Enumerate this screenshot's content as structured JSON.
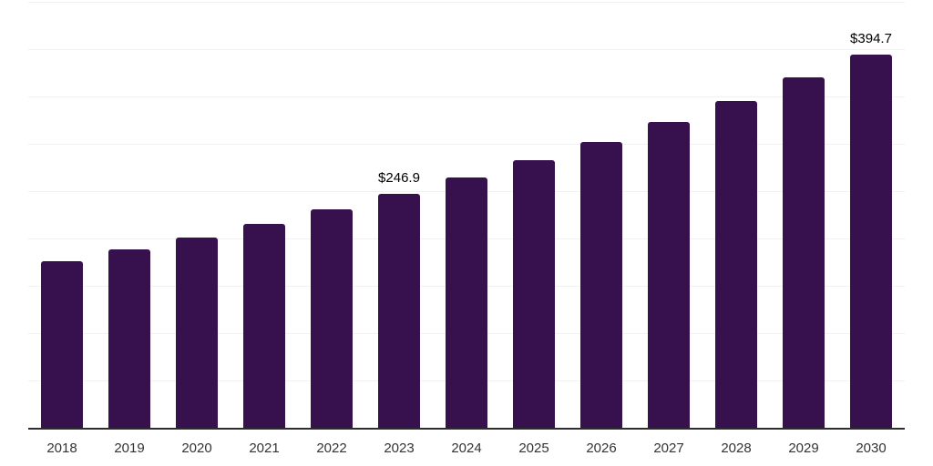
{
  "chart_data": {
    "type": "bar",
    "title": "",
    "xlabel": "",
    "ylabel": "",
    "categories": [
      "2018",
      "2019",
      "2020",
      "2021",
      "2022",
      "2023",
      "2024",
      "2025",
      "2026",
      "2027",
      "2028",
      "2029",
      "2030"
    ],
    "values": [
      176.4,
      188.5,
      201.4,
      215.3,
      230.5,
      246.9,
      264.1,
      282.5,
      302.1,
      323.2,
      345.7,
      370.6,
      394.7
    ],
    "point_labels": {
      "2023": "$246.9",
      "2030": "$394.7"
    },
    "ylim": [
      0,
      450
    ],
    "grid_step": 50,
    "grid": "horizontal",
    "legend": "none",
    "y_axis_tick_labels": "none"
  },
  "colors": {
    "bar": "#36114d",
    "gridline": "#f1f1f3",
    "axis": "#2d2d2d",
    "year_label": "#333333",
    "value_label": "#000000"
  }
}
